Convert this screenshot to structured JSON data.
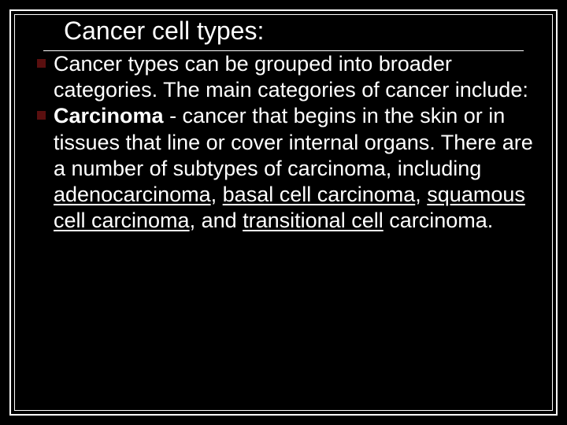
{
  "slide": {
    "background_color": "#000000",
    "frame_color": "#ffffff",
    "bullet_color": "#5a0f0f",
    "text_color": "#ffffff",
    "title_fontsize": 32,
    "body_fontsize": 27,
    "title": "Cancer cell types:",
    "items": [
      {
        "runs": [
          {
            "text": "Cancer types can be grouped into broader categories. The main categories of cancer include:"
          }
        ]
      },
      {
        "runs": [
          {
            "text": "Carcinoma",
            "bold": true
          },
          {
            "text": " - cancer that begins in the skin or in tissues that line or cover internal organs. There are a number of subtypes of carcinoma, including "
          },
          {
            "text": "adenocarcinoma",
            "underline": true
          },
          {
            "text": ", "
          },
          {
            "text": "basal cell carcinoma",
            "underline": true
          },
          {
            "text": ", "
          },
          {
            "text": "squamous cell carcinoma",
            "underline": true
          },
          {
            "text": ", and "
          },
          {
            "text": "transitional cell",
            "underline": true
          },
          {
            "text": " carcinoma."
          }
        ]
      }
    ]
  }
}
